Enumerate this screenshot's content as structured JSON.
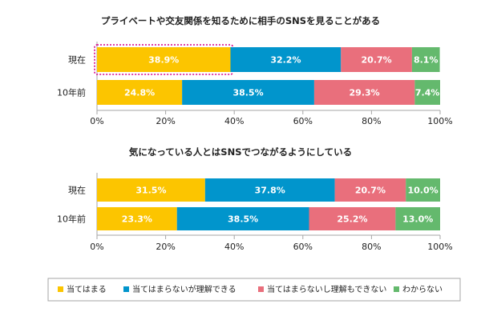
{
  "chart_data": [
    {
      "type": "bar",
      "orientation": "horizontal",
      "stacked": true,
      "title": "プライベートや交友関係を知るために相手のSNSを見ることがある",
      "categories": [
        "現在",
        "10年前"
      ],
      "series": [
        {
          "name": "当てはまる",
          "values": [
            38.9,
            24.8
          ],
          "labels": [
            "38.9%",
            "24.8%"
          ]
        },
        {
          "name": "当てはまらないが理解できる",
          "values": [
            32.2,
            38.5
          ],
          "labels": [
            "32.2%",
            "38.5%"
          ]
        },
        {
          "name": "当てはまらないし理解もできない",
          "values": [
            20.7,
            29.3
          ],
          "labels": [
            "20.7%",
            "29.3%"
          ]
        },
        {
          "name": "わからない",
          "values": [
            8.1,
            7.4
          ],
          "labels": [
            "8.1%",
            "7.4%"
          ]
        }
      ],
      "xlim": [
        0,
        100
      ],
      "x_ticks": [
        "0%",
        "20%",
        "40%",
        "60%",
        "80%",
        "100%"
      ],
      "highlight": {
        "category": "現在",
        "series": "当てはまる",
        "color": "#d6008a"
      }
    },
    {
      "type": "bar",
      "orientation": "horizontal",
      "stacked": true,
      "title": "気になっている人とはSNSでつながるようにしている",
      "categories": [
        "現在",
        "10年前"
      ],
      "series": [
        {
          "name": "当てはまる",
          "values": [
            31.5,
            23.3
          ],
          "labels": [
            "31.5%",
            "23.3%"
          ]
        },
        {
          "name": "当てはまらないが理解できる",
          "values": [
            37.8,
            38.5
          ],
          "labels": [
            "37.8%",
            "38.5%"
          ]
        },
        {
          "name": "当てはまらないし理解もできない",
          "values": [
            20.7,
            25.2
          ],
          "labels": [
            "20.7%",
            "25.2%"
          ]
        },
        {
          "name": "わからない",
          "values": [
            10.0,
            13.0
          ],
          "labels": [
            "10.0%",
            "13.0%"
          ]
        }
      ],
      "xlim": [
        0,
        100
      ],
      "x_ticks": [
        "0%",
        "20%",
        "40%",
        "60%",
        "80%",
        "100%"
      ]
    }
  ],
  "legend": {
    "placement": "bottom",
    "items": [
      {
        "label": "当てはまる",
        "color": "#fcc500"
      },
      {
        "label": "当てはまらないが理解できる",
        "color": "#0195cc"
      },
      {
        "label": "当てはまらないし理解もできない",
        "color": "#e96f7c"
      },
      {
        "label": "わからない",
        "color": "#64b96d"
      }
    ]
  },
  "colors": {
    "series": [
      "#fcc500",
      "#0195cc",
      "#e96f7c",
      "#64b96d"
    ],
    "axis": "#a6a6a6",
    "highlight": "#d6008a"
  }
}
